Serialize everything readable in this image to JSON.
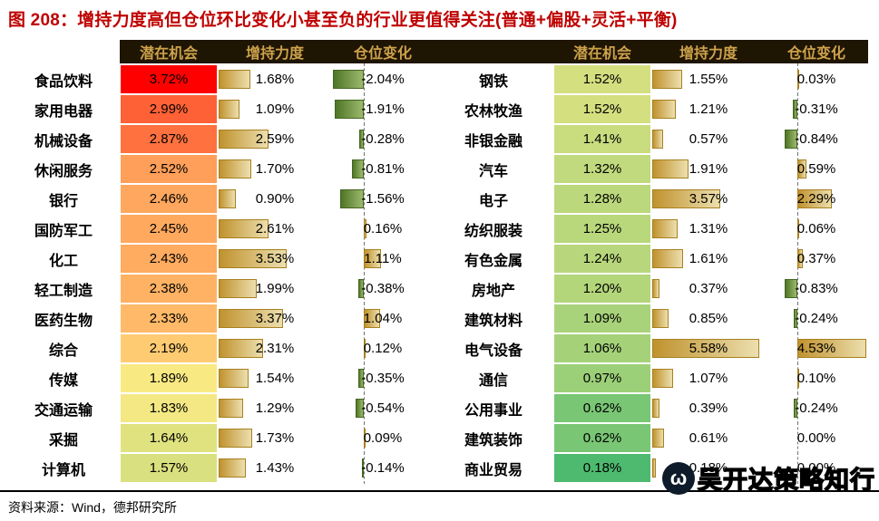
{
  "title": "图 208：增持力度高但仓位环比变化小甚至负的行业更值得关注(普通+偏股+灵活+平衡)",
  "source": "资料来源：Wind，德邦研究所",
  "watermark": "吴开达策略知行",
  "watermark_logo_glyph": "ω",
  "chart_data": {
    "type": "table",
    "title": "增持力度高但仓位环比变化小甚至负的行业更值得关注(普通+偏股+灵活+平衡)",
    "figure_label": "图 208",
    "unit": "%",
    "column_headers": [
      "潜在机会",
      "增持力度",
      "仓位变化"
    ],
    "left_rows": [
      {
        "industry": "食品饮料",
        "potential": 3.72,
        "increase": 1.68,
        "change": -2.04
      },
      {
        "industry": "家用电器",
        "potential": 2.99,
        "increase": 1.09,
        "change": -1.91
      },
      {
        "industry": "机械设备",
        "potential": 2.87,
        "increase": 2.59,
        "change": -0.28
      },
      {
        "industry": "休闲服务",
        "potential": 2.52,
        "increase": 1.7,
        "change": -0.81
      },
      {
        "industry": "银行",
        "potential": 2.46,
        "increase": 0.9,
        "change": -1.56
      },
      {
        "industry": "国防军工",
        "potential": 2.45,
        "increase": 2.61,
        "change": 0.16
      },
      {
        "industry": "化工",
        "potential": 2.43,
        "increase": 3.53,
        "change": 1.11
      },
      {
        "industry": "轻工制造",
        "potential": 2.38,
        "increase": 1.99,
        "change": -0.38
      },
      {
        "industry": "医药生物",
        "potential": 2.33,
        "increase": 3.37,
        "change": 1.04
      },
      {
        "industry": "综合",
        "potential": 2.19,
        "increase": 2.31,
        "change": 0.12
      },
      {
        "industry": "传媒",
        "potential": 1.89,
        "increase": 1.54,
        "change": -0.35
      },
      {
        "industry": "交通运输",
        "potential": 1.83,
        "increase": 1.29,
        "change": -0.54
      },
      {
        "industry": "采掘",
        "potential": 1.64,
        "increase": 1.73,
        "change": 0.09
      },
      {
        "industry": "计算机",
        "potential": 1.57,
        "increase": 1.43,
        "change": -0.14
      }
    ],
    "right_rows": [
      {
        "industry": "钢铁",
        "potential": 1.52,
        "increase": 1.55,
        "change": 0.03
      },
      {
        "industry": "农林牧渔",
        "potential": 1.52,
        "increase": 1.21,
        "change": -0.31
      },
      {
        "industry": "非银金融",
        "potential": 1.41,
        "increase": 0.57,
        "change": -0.84
      },
      {
        "industry": "汽车",
        "potential": 1.32,
        "increase": 1.91,
        "change": 0.59
      },
      {
        "industry": "电子",
        "potential": 1.28,
        "increase": 3.57,
        "change": 2.29
      },
      {
        "industry": "纺织服装",
        "potential": 1.25,
        "increase": 1.31,
        "change": 0.06
      },
      {
        "industry": "有色金属",
        "potential": 1.24,
        "increase": 1.61,
        "change": 0.37
      },
      {
        "industry": "房地产",
        "potential": 1.2,
        "increase": 0.37,
        "change": -0.83
      },
      {
        "industry": "建筑材料",
        "potential": 1.09,
        "increase": 0.85,
        "change": -0.24
      },
      {
        "industry": "电气设备",
        "potential": 1.06,
        "increase": 5.58,
        "change": 4.53
      },
      {
        "industry": "通信",
        "potential": 0.97,
        "increase": 1.07,
        "change": 0.1
      },
      {
        "industry": "公用事业",
        "potential": 0.62,
        "increase": 0.39,
        "change": -0.24
      },
      {
        "industry": "建筑装饰",
        "potential": 0.62,
        "increase": 0.61,
        "change": 0.0
      },
      {
        "industry": "商业贸易",
        "potential": 0.18,
        "increase": 0.18,
        "change": 0.0
      }
    ],
    "heat_scale": {
      "min": 0.18,
      "mid": 1.95,
      "max": 3.72,
      "min_color": "#4DBA6F",
      "mid_color": "#FFEB84",
      "max_color": "#FF0000"
    },
    "bar_scale": {
      "increase_max": 5.58,
      "change_min": -2.04,
      "change_max": 4.53
    },
    "colors": {
      "title": "#bf0000",
      "header_bg": "#1f1503",
      "header_text": "#cda24c",
      "bar_gold": "#c0922e",
      "bar_green": "#4f7526",
      "zero_axis": "#737373"
    }
  }
}
